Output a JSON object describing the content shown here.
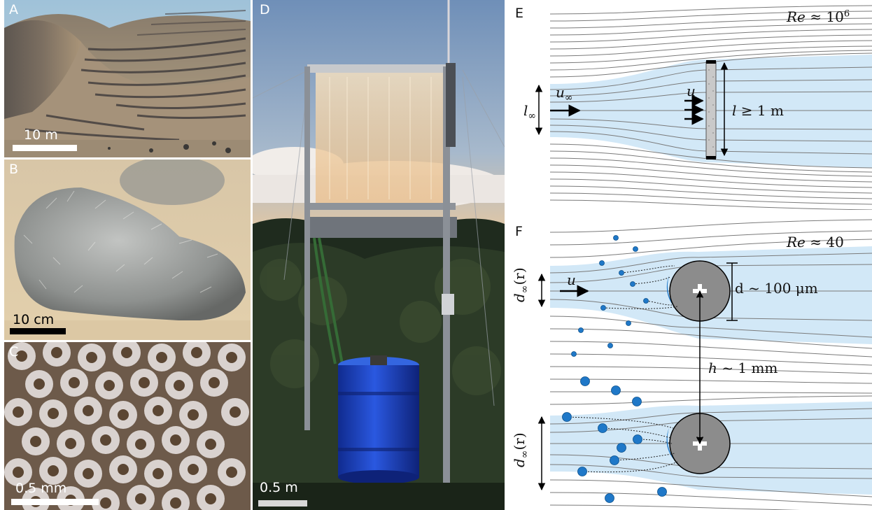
{
  "panels": {
    "A": {
      "letter": "A",
      "scale_label": "10 m"
    },
    "B": {
      "letter": "B",
      "scale_label": "10 cm"
    },
    "C": {
      "letter": "C",
      "scale_label": "0.5 mm"
    },
    "D": {
      "letter": "D",
      "scale_label": "0.5 m"
    },
    "E": {
      "letter": "E",
      "re_symbol": "Re",
      "re_value": "≈ 10",
      "re_exponent": "6",
      "u_inf": "u",
      "u_inf_sub": "∞",
      "u": "u",
      "l_inf": "l",
      "l_inf_sub": "∞",
      "l": "l",
      "l_condition": "≥ 1 m"
    },
    "F": {
      "letter": "F",
      "re_symbol": "Re",
      "re_value": "≈ 40",
      "u": "u",
      "d_inf": "d",
      "d_inf_sub": "∞",
      "d_inf_arg": "(r)",
      "diameter_label": "d ~ 100 μm",
      "h_symbol": "h",
      "h_value": "~ 1 mm"
    }
  },
  "colors": {
    "flow_region": "#d2e8f7",
    "streamline": "#777777",
    "droplet": "#1f78c8",
    "collector": "#8c8c8c",
    "scale_bar": "#ffffff",
    "scale_bar_dark": "#000000"
  }
}
